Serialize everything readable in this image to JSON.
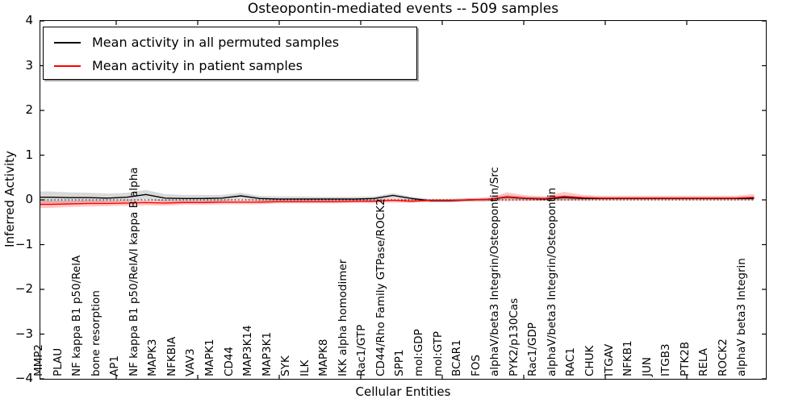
{
  "title": "Osteopontin-mediated events -- 509 samples",
  "legend": {
    "items": [
      {
        "label": "Mean activity in all permuted samples",
        "color": "#000000"
      },
      {
        "label": "Mean activity in patient samples",
        "color": "#ff0000"
      }
    ]
  },
  "chart_data": {
    "type": "line",
    "title": "Osteopontin-mediated events -- 509 samples",
    "xlabel": "Cellular Entities",
    "ylabel": "Inferred Activity",
    "ylim": [
      -4,
      4
    ],
    "yticklabels": [
      "4",
      "3",
      "2",
      "1",
      "0",
      "−1",
      "−2",
      "−3",
      "−4"
    ],
    "ytick_values": [
      4,
      3,
      2,
      1,
      0,
      -1,
      -2,
      -3,
      -4
    ],
    "zero_line_style": "dotted",
    "grid": false,
    "legend_position": "upper left",
    "categories": [
      "MMP2",
      "PLAU",
      "NF kappa B1 p50/RelA",
      "bone resorption",
      "AP1",
      "NF kappa B1 p50/RelA/I kappa B alpha",
      "MAPK3",
      "NFKBIA",
      "VAV3",
      "MAPK1",
      "CD44",
      "MAP3K14",
      "MAP3K1",
      "SYK",
      "ILK",
      "MAPK8",
      "IKK alpha homodimer",
      "Rac1/GTP",
      "CD44/Rho Family GTPase/ROCK2",
      "SPP1",
      "mol:GDP",
      "mol:GTP",
      "BCAR1",
      "FOS",
      "alphaV/beta3 Integrin/Osteopontin/Src",
      "PYK2/p130Cas",
      "Rac1/GDP",
      "alphaV/beta3 Integrin/Osteopontin",
      "RAC1",
      "CHUK",
      "ITGAV",
      "NFKB1",
      "JUN",
      "ITGB3",
      "PTK2B",
      "RELA",
      "ROCK2",
      "alphaV beta3 Integrin"
    ],
    "series": [
      {
        "name": "Mean activity in all permuted samples",
        "color": "#000000",
        "band_color": "rgba(0,0,0,0.15)",
        "values": [
          0.06,
          0.05,
          0.05,
          0.04,
          0.06,
          0.12,
          0.04,
          0.03,
          0.03,
          0.04,
          0.09,
          0.03,
          0.02,
          0.02,
          0.02,
          0.02,
          0.02,
          0.03,
          0.1,
          0.03,
          -0.02,
          -0.02,
          0.0,
          0.01,
          0.06,
          0.03,
          0.02,
          0.05,
          0.03,
          0.03,
          0.03,
          0.03,
          0.03,
          0.03,
          0.03,
          0.03,
          0.03,
          0.03
        ],
        "band_halfwidth": [
          0.13,
          0.12,
          0.11,
          0.1,
          0.1,
          0.1,
          0.09,
          0.08,
          0.08,
          0.07,
          0.07,
          0.06,
          0.06,
          0.06,
          0.05,
          0.05,
          0.05,
          0.05,
          0.05,
          0.04,
          0.04,
          0.04,
          0.04,
          0.04,
          0.05,
          0.04,
          0.04,
          0.05,
          0.04,
          0.03,
          0.03,
          0.03,
          0.03,
          0.03,
          0.03,
          0.03,
          0.03,
          0.03
        ]
      },
      {
        "name": "Mean activity in patient samples",
        "color": "#ff0000",
        "band_color": "rgba(255,0,0,0.22)",
        "values": [
          -0.1,
          -0.09,
          -0.08,
          -0.08,
          -0.07,
          -0.06,
          -0.07,
          -0.06,
          -0.06,
          -0.05,
          -0.05,
          -0.05,
          -0.04,
          -0.04,
          -0.04,
          -0.04,
          -0.03,
          -0.03,
          -0.01,
          -0.03,
          -0.01,
          -0.01,
          0.0,
          0.01,
          0.07,
          0.04,
          0.03,
          0.08,
          0.05,
          0.04,
          0.04,
          0.04,
          0.04,
          0.04,
          0.04,
          0.04,
          0.04,
          0.06
        ],
        "band_halfwidth": [
          0.08,
          0.07,
          0.07,
          0.06,
          0.06,
          0.06,
          0.06,
          0.05,
          0.05,
          0.05,
          0.05,
          0.05,
          0.04,
          0.04,
          0.04,
          0.04,
          0.04,
          0.04,
          0.05,
          0.04,
          0.03,
          0.03,
          0.03,
          0.04,
          0.1,
          0.06,
          0.05,
          0.1,
          0.06,
          0.05,
          0.05,
          0.05,
          0.05,
          0.05,
          0.05,
          0.05,
          0.05,
          0.07
        ]
      }
    ]
  }
}
